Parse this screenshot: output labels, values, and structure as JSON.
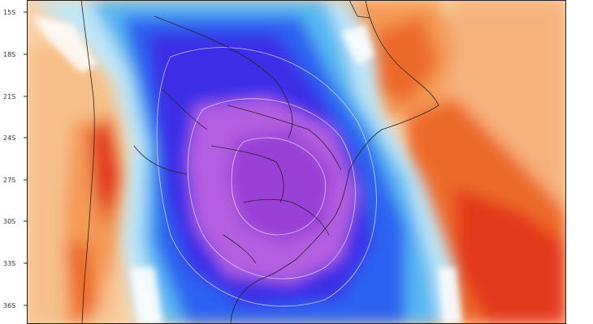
{
  "map": {
    "latitude_labels": [
      "15S",
      "18S",
      "21S",
      "24S",
      "27S",
      "30S",
      "33S",
      "36S"
    ],
    "colors": {
      "deep_purple": "#9a3fd6",
      "violet": "#b45ee0",
      "dark_blue": "#3b2ee6",
      "blue": "#2a64f0",
      "light_blue": "#58b8f2",
      "pale_blue": "#bfe6f8",
      "white": "#ffffff",
      "pale_orange": "#fbd3a8",
      "orange": "#f39a55",
      "dark_orange": "#ee6a2c",
      "red": "#e23a1f",
      "border_line": "#222222",
      "contour_line": "#e8e8ff"
    }
  }
}
